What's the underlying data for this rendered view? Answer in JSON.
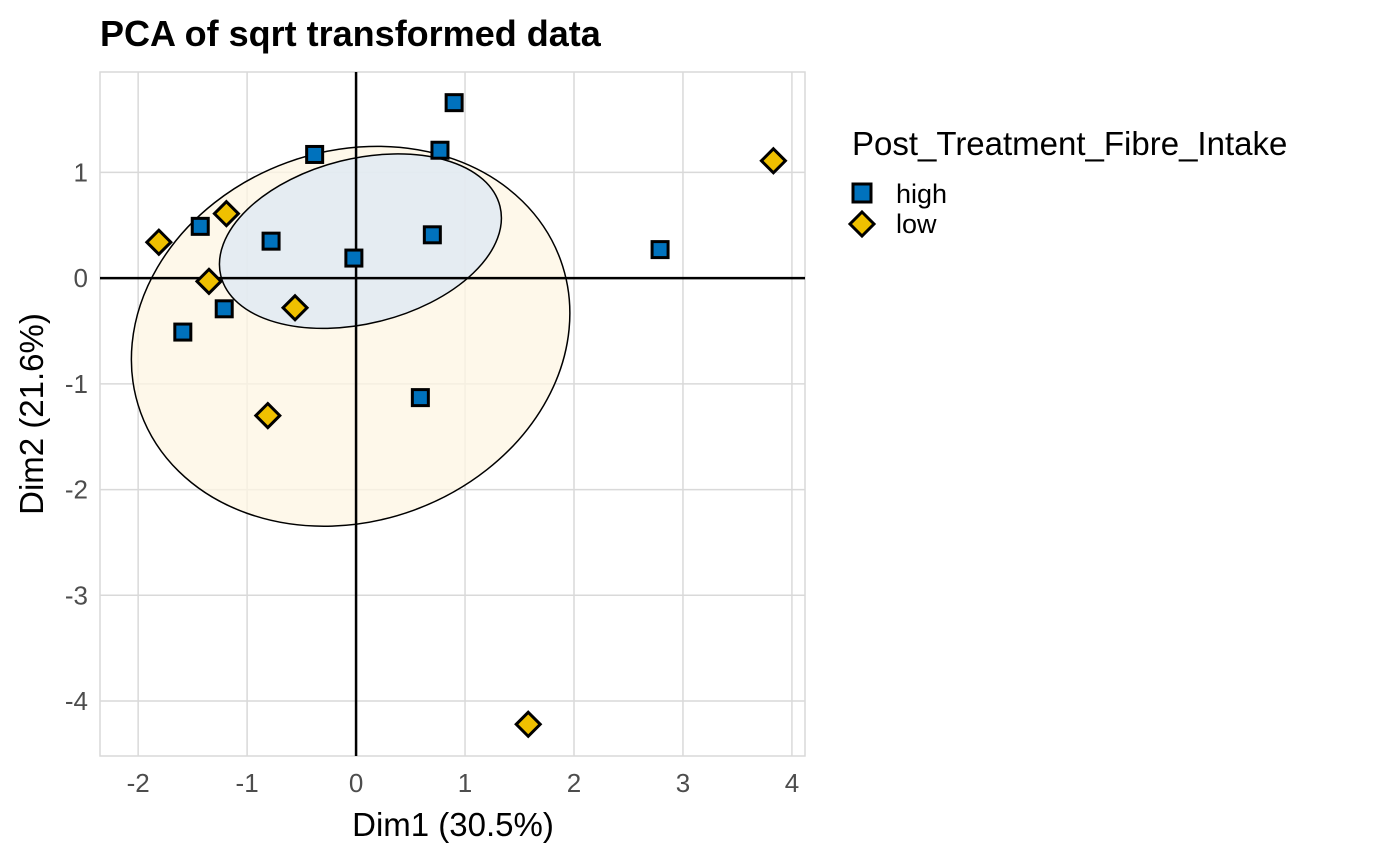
{
  "chart_data": {
    "type": "scatter",
    "title": "PCA of sqrt transformed data",
    "xlabel": "Dim1 (30.5%)",
    "ylabel": "Dim2 (21.6%)",
    "xlim": [
      -2.35,
      4.12
    ],
    "ylim": [
      -4.52,
      1.95
    ],
    "x_ticks": [
      -2,
      -1,
      0,
      1,
      2,
      3,
      4
    ],
    "y_ticks": [
      -4,
      -3,
      -2,
      -1,
      0,
      1
    ],
    "x_tick_labels": [
      "-2",
      "-1",
      "0",
      "1",
      "2",
      "3",
      "4"
    ],
    "y_tick_labels": [
      "-4",
      "-3",
      "-2",
      "-1",
      "0",
      "1"
    ],
    "grid": true,
    "legend": {
      "title": "Post_Treatment_Fibre_Intake",
      "placement": "right",
      "entries": [
        "high",
        "low"
      ]
    },
    "series": [
      {
        "name": "high",
        "marker": "square",
        "color": "#0072BD",
        "ellipse_fill": "#dce8f4",
        "ellipse": {
          "cx": 0.04,
          "cy": 0.35,
          "rx": 1.32,
          "ry": 0.78,
          "angle_deg": -14
        },
        "points": [
          {
            "x": 0.9,
            "y": 1.66
          },
          {
            "x": 0.77,
            "y": 1.21
          },
          {
            "x": -0.38,
            "y": 1.17
          },
          {
            "x": -1.43,
            "y": 0.49
          },
          {
            "x": -0.78,
            "y": 0.35
          },
          {
            "x": -0.02,
            "y": 0.19
          },
          {
            "x": 0.7,
            "y": 0.41
          },
          {
            "x": 2.79,
            "y": 0.27
          },
          {
            "x": -1.21,
            "y": -0.29
          },
          {
            "x": -1.59,
            "y": -0.51
          },
          {
            "x": 0.59,
            "y": -1.13
          }
        ]
      },
      {
        "name": "low",
        "marker": "diamond",
        "color": "#EFC000",
        "ellipse_fill": "#fdf6e3",
        "ellipse": {
          "cx": -0.05,
          "cy": -0.55,
          "rx": 2.05,
          "ry": 1.75,
          "angle_deg": -20
        },
        "points": [
          {
            "x": -1.81,
            "y": 0.34
          },
          {
            "x": -1.19,
            "y": 0.61
          },
          {
            "x": -1.35,
            "y": -0.03
          },
          {
            "x": -0.56,
            "y": -0.28
          },
          {
            "x": -0.81,
            "y": -1.3
          },
          {
            "x": 3.83,
            "y": 1.11
          },
          {
            "x": 1.58,
            "y": -4.22
          }
        ]
      }
    ]
  }
}
